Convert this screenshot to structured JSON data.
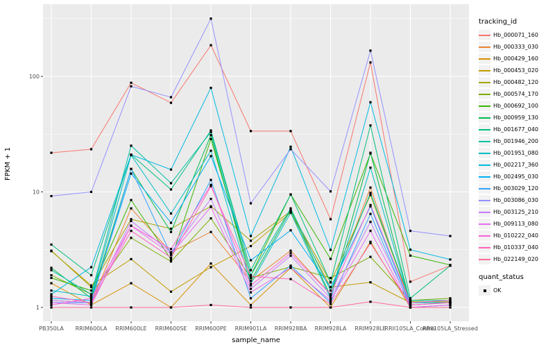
{
  "chart_data": {
    "type": "line",
    "xlabel": "sample_name",
    "ylabel": "FPKM + 1",
    "y_scale": "log10",
    "y_ticks": [
      1,
      10,
      100
    ],
    "y_tick_labels": [
      "1",
      "10",
      "100"
    ],
    "y_minor": [
      3.162,
      31.623,
      316.228
    ],
    "grid": true,
    "legend_position": "right",
    "legend_title": "tracking_id",
    "point_legend_title": "quant_status",
    "point_legend_label": "OK",
    "panel_bg": "#EBEBEB",
    "grid_color": "#FFFFFF",
    "point_color": "#000000",
    "categories": [
      "PB350LA",
      "RRIM600LA",
      "RRIM600LE",
      "RRIM600SE",
      "RRIM600PE",
      "RRIM901LA",
      "RRIM928BA",
      "RRIM928LA",
      "RRIM928LE",
      "RRII105LA_Control",
      "RRII105LA_Stressed"
    ],
    "series": [
      {
        "name": "Hb_000071_160",
        "color": "#F8766D",
        "values": [
          21.8,
          23.4,
          88,
          59,
          186,
          33.6,
          33.6,
          5.8,
          132,
          1.67,
          2.3
        ]
      },
      {
        "name": "Hb_000333_030",
        "color": "#EA8331",
        "values": [
          1.15,
          1.1,
          7.2,
          3.0,
          4.5,
          1.7,
          3.1,
          1.3,
          10.9,
          1.05,
          1.1
        ]
      },
      {
        "name": "Hb_000429_160",
        "color": "#D89000",
        "values": [
          1.62,
          1.05,
          1.62,
          1.0,
          2.4,
          1.05,
          2.2,
          1.0,
          3.7,
          1.0,
          1.05
        ]
      },
      {
        "name": "Hb_000453_020",
        "color": "#C09B00",
        "values": [
          3.07,
          1.55,
          2.62,
          1.37,
          2.23,
          3.4,
          6.6,
          1.5,
          1.65,
          1.1,
          1.15
        ]
      },
      {
        "name": "Hb_000482_120",
        "color": "#A3A500",
        "values": [
          3.1,
          1.5,
          5.8,
          4.8,
          7.5,
          3.78,
          6.8,
          1.65,
          9.4,
          1.12,
          1.12
        ]
      },
      {
        "name": "Hb_000574_170",
        "color": "#7CAE00",
        "values": [
          1.9,
          1.3,
          4.0,
          2.5,
          5.9,
          1.8,
          2.25,
          1.8,
          2.74,
          1.15,
          1.2
        ]
      },
      {
        "name": "Hb_000692_100",
        "color": "#39B600",
        "values": [
          1.8,
          1.4,
          8.5,
          2.6,
          28.7,
          1.9,
          9.5,
          2.63,
          21.5,
          2.81,
          2.33
        ]
      },
      {
        "name": "Hb_000959_130",
        "color": "#00BB4E",
        "values": [
          2.2,
          1.2,
          15.8,
          4.5,
          31,
          1.7,
          7.0,
          1.25,
          21.8,
          1.1,
          1.1
        ]
      },
      {
        "name": "Hb_001677_040",
        "color": "#00BF7D",
        "values": [
          3.5,
          1.9,
          21,
          10.5,
          34,
          2.1,
          9.5,
          1.65,
          37.6,
          1.2,
          2.3
        ]
      },
      {
        "name": "Hb_001946_200",
        "color": "#00C1A3",
        "values": [
          2.1,
          1.3,
          25.1,
          11.9,
          33,
          1.9,
          7.2,
          1.4,
          9.8,
          1.15,
          1.15
        ]
      },
      {
        "name": "Hb_001951_080",
        "color": "#00BFC4",
        "values": [
          1.4,
          1.25,
          20.8,
          6.5,
          22.7,
          1.6,
          6.6,
          1.2,
          16.2,
          1.1,
          1.1
        ]
      },
      {
        "name": "Hb_002217_360",
        "color": "#00BAE0",
        "values": [
          1.3,
          2.23,
          21.0,
          15.6,
          79.5,
          4.15,
          24.6,
          3.15,
          59.7,
          3.16,
          2.6
        ]
      },
      {
        "name": "Hb_002495_030",
        "color": "#00B0F6",
        "values": [
          1.2,
          1.15,
          14.4,
          5.4,
          20.4,
          2.56,
          4.65,
          1.5,
          7.5,
          1.05,
          1.1
        ]
      },
      {
        "name": "Hb_003029_120",
        "color": "#35A2FF",
        "values": [
          1.1,
          1.1,
          15.8,
          2.85,
          12.7,
          1.2,
          2.3,
          1.1,
          6.45,
          1.0,
          1.05
        ]
      },
      {
        "name": "Hb_003086_030",
        "color": "#9590FF",
        "values": [
          9.2,
          10.0,
          82,
          66,
          316,
          7.96,
          23.4,
          10.1,
          167,
          4.6,
          4.15
        ]
      },
      {
        "name": "Hb_003125_210",
        "color": "#C77CFF",
        "values": [
          1.15,
          1.1,
          5.6,
          3.0,
          8.7,
          1.45,
          2.8,
          1.2,
          5.5,
          1.05,
          1.1
        ]
      },
      {
        "name": "Hb_009113_080",
        "color": "#E76BF3",
        "values": [
          1.1,
          1.05,
          5.1,
          2.9,
          7.4,
          1.35,
          2.2,
          1.15,
          4.6,
          1.0,
          1.05
        ]
      },
      {
        "name": "Hb_010222_040",
        "color": "#FA62DB",
        "values": [
          1.05,
          1.2,
          5.1,
          3.2,
          11.5,
          1.55,
          2.95,
          1.3,
          7.7,
          1.1,
          1.15
        ]
      },
      {
        "name": "Hb_010337_040",
        "color": "#FF62BC",
        "values": [
          1.25,
          1.1,
          4.6,
          2.7,
          11.2,
          1.86,
          1.76,
          1.07,
          3.6,
          1.05,
          1.1
        ]
      },
      {
        "name": "Hb_022149_020",
        "color": "#FF6A98",
        "values": [
          1.0,
          1.0,
          1.0,
          1.0,
          1.05,
          1.0,
          1.0,
          1.0,
          1.12,
          1.0,
          1.0
        ]
      }
    ]
  }
}
